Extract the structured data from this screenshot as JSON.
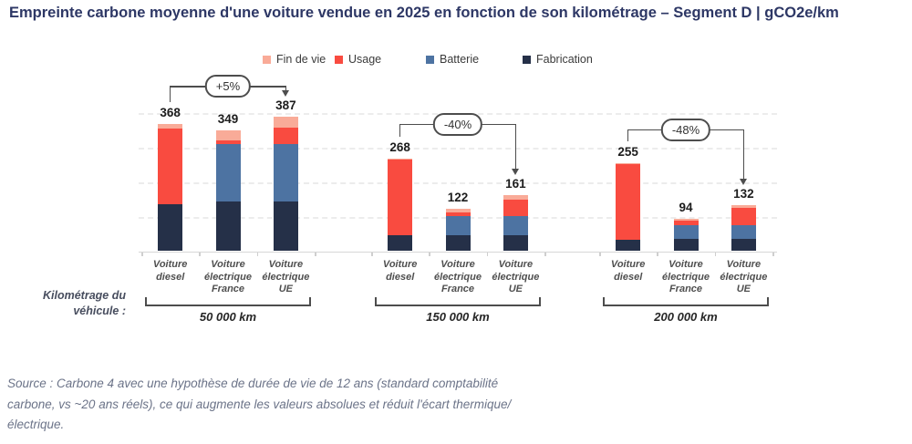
{
  "title": "Empreinte carbone moyenne d'une voiture vendue en 2025 en fonction de son kilométrage – Segment D | gCO2e/km",
  "colors": {
    "fin_de_vie": "#f9ab98",
    "usage": "#f94b40",
    "batterie": "#4d73a2",
    "fabrication": "#253048",
    "title": "#2d3765",
    "annotation_stroke": "#4d4d4d",
    "gridline": "#ececec",
    "source_text": "#6b7388"
  },
  "legend": [
    {
      "label": "Fin de vie",
      "color": "#f9ab98"
    },
    {
      "label": "Usage",
      "color": "#f94b40"
    },
    {
      "label": "Batterie",
      "color": "#4d73a2"
    },
    {
      "label": "Fabrication",
      "color": "#253048"
    }
  ],
  "chart_data": {
    "type": "bar",
    "stacked": true,
    "unit": "gCO2e/km",
    "title": "Empreinte carbone moyenne d'une voiture vendue en 2025 en fonction de son kilométrage – Segment D | gCO2e/km",
    "ylim": [
      0,
      420
    ],
    "gridline_values": [
      100,
      200,
      300,
      400
    ],
    "grid": "dashed-horizontal",
    "legend_position": "top-center",
    "segment_order_bottom_to_top": [
      "fabrication",
      "batterie",
      "usage",
      "fin_de_vie"
    ],
    "segment_labels": {
      "fabrication": "Fabrication",
      "batterie": "Batterie",
      "usage": "Usage",
      "fin_de_vie": "Fin de vie"
    },
    "groups": [
      {
        "km_label": "50 000 km",
        "bars": [
          {
            "category_lines": [
              "Voiture",
              "diesel"
            ],
            "total": 368,
            "segments": {
              "fabrication": 136,
              "batterie": 0,
              "usage": 219,
              "fin_de_vie": 13
            }
          },
          {
            "category_lines": [
              "Voiture",
              "électrique",
              "France"
            ],
            "total": 349,
            "segments": {
              "fabrication": 144,
              "batterie": 165,
              "usage": 11,
              "fin_de_vie": 29
            }
          },
          {
            "category_lines": [
              "Voiture",
              "électrique",
              "UE"
            ],
            "total": 387,
            "segments": {
              "fabrication": 144,
              "batterie": 165,
              "usage": 48,
              "fin_de_vie": 30
            }
          }
        ],
        "annotation": {
          "label": "+5%",
          "from_bar": 0,
          "to_bar": 2
        }
      },
      {
        "km_label": "150 000 km",
        "bars": [
          {
            "category_lines": [
              "Voiture",
              "diesel"
            ],
            "total": 268,
            "segments": {
              "fabrication": 45,
              "batterie": 0,
              "usage": 219,
              "fin_de_vie": 4
            }
          },
          {
            "category_lines": [
              "Voiture",
              "électrique",
              "France"
            ],
            "total": 122,
            "segments": {
              "fabrication": 47,
              "batterie": 54,
              "usage": 11,
              "fin_de_vie": 10
            }
          },
          {
            "category_lines": [
              "Voiture",
              "électrique",
              "UE"
            ],
            "total": 161,
            "segments": {
              "fabrication": 47,
              "batterie": 54,
              "usage": 48,
              "fin_de_vie": 12
            }
          }
        ],
        "annotation": {
          "label": "-40%",
          "from_bar": 0,
          "to_bar": 2
        }
      },
      {
        "km_label": "200 000 km",
        "bars": [
          {
            "category_lines": [
              "Voiture",
              "diesel"
            ],
            "total": 255,
            "segments": {
              "fabrication": 34,
              "batterie": 0,
              "usage": 219,
              "fin_de_vie": 2
            }
          },
          {
            "category_lines": [
              "Voiture",
              "électrique",
              "France"
            ],
            "total": 94,
            "segments": {
              "fabrication": 35,
              "batterie": 41,
              "usage": 11,
              "fin_de_vie": 7
            }
          },
          {
            "category_lines": [
              "Voiture",
              "électrique",
              "UE"
            ],
            "total": 132,
            "segments": {
              "fabrication": 35,
              "batterie": 41,
              "usage": 48,
              "fin_de_vie": 8
            }
          }
        ],
        "annotation": {
          "label": "-48%",
          "from_bar": 0,
          "to_bar": 2
        }
      }
    ]
  },
  "axis_note": {
    "line1": "Kilométrage du",
    "line2": "véhicule :"
  },
  "source": {
    "lines": [
      "Source : Carbone 4 avec une hypothèse de durée de vie de 12 ans (standard comptabilité",
      "carbone, vs ~20 ans réels), ce qui augmente les valeurs absolues et réduit l'écart thermique/",
      "électrique."
    ]
  }
}
